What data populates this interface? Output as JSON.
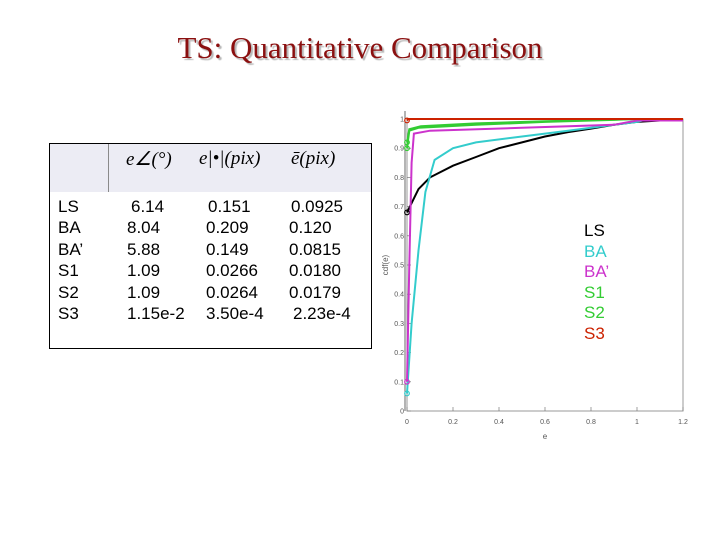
{
  "title": "TS: Quantitative Comparison",
  "table": {
    "headers": [
      "e∠(°)",
      "e|•|(pix)",
      "ē(pix)"
    ],
    "rows": [
      {
        "label": "LS",
        "values": [
          "6.14",
          "0.151",
          "0.0925"
        ]
      },
      {
        "label": "BA",
        "values": [
          "8.04",
          "0.209",
          "0.120"
        ]
      },
      {
        "label": "BA’",
        "values": [
          "5.88",
          "0.149",
          "0.0815"
        ]
      },
      {
        "label": "S1",
        "values": [
          "1.09",
          "0.0266",
          "0.0180"
        ]
      },
      {
        "label": "S2",
        "values": [
          "1.09",
          "0.0264",
          "0.0179"
        ]
      },
      {
        "label": "S3",
        "values": [
          "1.15e-2",
          "3.50e-4",
          "2.23e-4"
        ]
      }
    ]
  },
  "chart_data": {
    "type": "line",
    "xlabel": "e",
    "ylabel": "cdf(e)",
    "xlim": [
      0,
      1.2
    ],
    "ylim": [
      0,
      1
    ],
    "x_ticks": [
      "0",
      "0.2",
      "0.4",
      "0.6",
      "0.8",
      "1",
      "1.2"
    ],
    "y_ticks": [
      "0",
      "0.1",
      "0.2",
      "0.3",
      "0.4",
      "0.5",
      "0.6",
      "0.7",
      "0.8",
      "0.9",
      "1"
    ],
    "legend_position": "right",
    "series": [
      {
        "name": "LS",
        "color": "#000000",
        "points": [
          [
            0,
            0.68
          ],
          [
            0.05,
            0.76
          ],
          [
            0.1,
            0.8
          ],
          [
            0.2,
            0.84
          ],
          [
            0.3,
            0.87
          ],
          [
            0.4,
            0.9
          ],
          [
            0.5,
            0.92
          ],
          [
            0.6,
            0.94
          ],
          [
            0.7,
            0.955
          ],
          [
            0.8,
            0.967
          ],
          [
            0.9,
            0.98
          ],
          [
            1.0,
            0.99
          ],
          [
            1.1,
            0.995
          ],
          [
            1.2,
            1.0
          ]
        ]
      },
      {
        "name": "BA",
        "color": "#33cccc",
        "points": [
          [
            0,
            0.06
          ],
          [
            0.02,
            0.3
          ],
          [
            0.05,
            0.55
          ],
          [
            0.08,
            0.75
          ],
          [
            0.12,
            0.86
          ],
          [
            0.2,
            0.9
          ],
          [
            0.3,
            0.92
          ],
          [
            0.5,
            0.94
          ],
          [
            0.7,
            0.96
          ],
          [
            0.9,
            0.98
          ],
          [
            1.0,
            0.99
          ],
          [
            1.05,
            1.0
          ],
          [
            1.2,
            1.0
          ]
        ]
      },
      {
        "name": "BA’",
        "color": "#cc33cc",
        "points": [
          [
            0,
            0.1
          ],
          [
            0.01,
            0.5
          ],
          [
            0.02,
            0.85
          ],
          [
            0.03,
            0.95
          ],
          [
            0.1,
            0.96
          ],
          [
            0.5,
            0.97
          ],
          [
            0.9,
            0.98
          ],
          [
            1.0,
            0.995
          ],
          [
            1.2,
            0.995
          ]
        ]
      },
      {
        "name": "S1",
        "color": "#33cc33",
        "points": [
          [
            0,
            0.9
          ],
          [
            0.01,
            0.96
          ],
          [
            0.05,
            0.97
          ],
          [
            0.3,
            0.98
          ],
          [
            0.6,
            0.99
          ],
          [
            0.9,
            0.997
          ],
          [
            1.0,
            1.0
          ],
          [
            1.2,
            1.0
          ]
        ]
      },
      {
        "name": "S2",
        "color": "#33cc33",
        "points": [
          [
            0,
            0.92
          ],
          [
            0.01,
            0.965
          ],
          [
            0.06,
            0.975
          ],
          [
            0.3,
            0.985
          ],
          [
            0.6,
            0.992
          ],
          [
            0.9,
            0.998
          ],
          [
            1.0,
            1.0
          ],
          [
            1.2,
            1.0
          ]
        ]
      },
      {
        "name": "S3",
        "color": "#cc2200",
        "points": [
          [
            0,
            0.995
          ],
          [
            0.005,
            1.0
          ],
          [
            1.2,
            1.0
          ]
        ]
      }
    ]
  },
  "legend": [
    {
      "label": "LS",
      "color": "#000000"
    },
    {
      "label": "BA",
      "color": "#33cccc"
    },
    {
      "label": "BA’",
      "color": "#cc33cc"
    },
    {
      "label": "S1",
      "color": "#33cc33"
    },
    {
      "label": "S2",
      "color": "#33cc33"
    },
    {
      "label": "S3",
      "color": "#cc2200"
    }
  ]
}
